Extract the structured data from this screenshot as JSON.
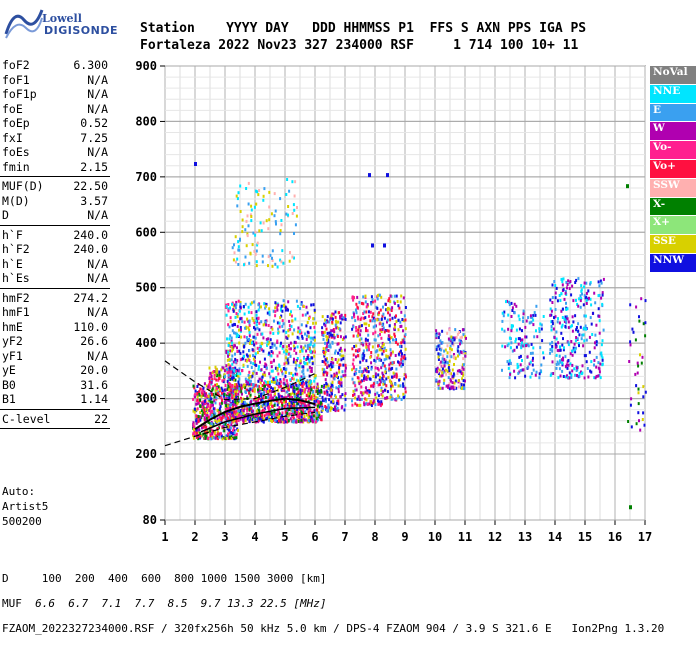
{
  "logo": {
    "line1": "Lowell",
    "line2": "DIGISONDE"
  },
  "header": {
    "line1": "Station    YYYY DAY   DDD HHMMSS P1  FFS S AXN PPS IGA PS",
    "line2": "Fortaleza 2022 Nov23 327 234000 RSF     1 714 100 10+ 11"
  },
  "params": {
    "group1": [
      {
        "k": "foF2",
        "v": "6.300"
      },
      {
        "k": "foF1",
        "v": "N/A"
      },
      {
        "k": "foF1p",
        "v": "N/A"
      },
      {
        "k": "foE",
        "v": "N/A"
      },
      {
        "k": "foEp",
        "v": "0.52"
      },
      {
        "k": "fxI",
        "v": "7.25"
      },
      {
        "k": "foEs",
        "v": "N/A"
      },
      {
        "k": "fmin",
        "v": "2.15"
      }
    ],
    "group2": [
      {
        "k": "MUF(D)",
        "v": "22.50"
      },
      {
        "k": "M(D)",
        "v": "3.57"
      },
      {
        "k": "D",
        "v": "N/A"
      }
    ],
    "group3": [
      {
        "k": "h`F",
        "v": "240.0"
      },
      {
        "k": "h`F2",
        "v": "240.0"
      },
      {
        "k": "h`E",
        "v": "N/A"
      },
      {
        "k": "h`Es",
        "v": "N/A"
      }
    ],
    "group4": [
      {
        "k": "hmF2",
        "v": "274.2"
      },
      {
        "k": "hmF1",
        "v": "N/A"
      },
      {
        "k": "hmE",
        "v": "110.0"
      },
      {
        "k": "yF2",
        "v": "26.6"
      },
      {
        "k": "yF1",
        "v": "N/A"
      },
      {
        "k": "yE",
        "v": "20.0"
      },
      {
        "k": "B0",
        "v": "31.6"
      },
      {
        "k": "B1",
        "v": "1.14"
      }
    ],
    "group5": [
      {
        "k": "C-level",
        "v": "22"
      }
    ]
  },
  "auto": {
    "line1": "Auto:",
    "line2": "Artist5",
    "line3": "500200"
  },
  "legend": [
    {
      "label": "NoVal",
      "color": "#808080"
    },
    {
      "label": "NNE",
      "color": "#00e5ff"
    },
    {
      "label": "E",
      "color": "#3aa0f0"
    },
    {
      "label": "W",
      "color": "#b000b0"
    },
    {
      "label": "Vo-",
      "color": "#ff1f8f"
    },
    {
      "label": "Vo+",
      "color": "#ff1040"
    },
    {
      "label": "SSW",
      "color": "#ffb0b0"
    },
    {
      "label": "X-",
      "color": "#008000"
    },
    {
      "label": "X+",
      "color": "#8de67a"
    },
    {
      "label": "SSE",
      "color": "#d8d000"
    },
    {
      "label": "NNW",
      "color": "#1010e0"
    }
  ],
  "chart_data": {
    "type": "scatter",
    "x_ticks": [
      "1",
      "2",
      "3",
      "4",
      "5",
      "6",
      "7",
      "8",
      "9",
      "10",
      "11",
      "12",
      "13",
      "14",
      "15",
      "16",
      "17"
    ],
    "y_ticks": [
      "80",
      "200",
      "300",
      "400",
      "500",
      "600",
      "700",
      "800",
      "900"
    ],
    "xlim": [
      1,
      17
    ],
    "ylim": [
      80,
      900
    ],
    "grid": true,
    "profile_curve": [
      [
        2.0,
        245
      ],
      [
        2.5,
        262
      ],
      [
        3.0,
        276
      ],
      [
        3.5,
        285
      ],
      [
        4.0,
        291
      ],
      [
        4.5,
        296
      ],
      [
        5.0,
        300
      ],
      [
        5.5,
        297
      ],
      [
        6.0,
        290
      ]
    ],
    "trace_curve": [
      [
        2.2,
        240
      ],
      [
        3.0,
        258
      ],
      [
        4.0,
        272
      ],
      [
        5.0,
        282
      ],
      [
        6.0,
        284
      ]
    ],
    "dashed_upper": [
      [
        1.0,
        368
      ],
      [
        2.0,
        330
      ],
      [
        3.0,
        298
      ],
      [
        4.0,
        300
      ],
      [
        5.0,
        320
      ],
      [
        6.0,
        345
      ]
    ],
    "dashed_lower": [
      [
        1.0,
        215
      ],
      [
        2.0,
        232
      ],
      [
        3.0,
        248
      ],
      [
        4.0,
        258
      ],
      [
        5.0,
        268
      ],
      [
        6.0,
        275
      ]
    ],
    "echo_clusters": [
      {
        "x": [
          1.9,
          2.4
        ],
        "y": [
          230,
          330
        ],
        "n": 180,
        "colors": [
          "#ff1040",
          "#ff1f8f",
          "#b000b0",
          "#008000",
          "#1010e0",
          "#d8d000"
        ]
      },
      {
        "x": [
          2.4,
          3.4
        ],
        "y": [
          230,
          360
        ],
        "n": 420,
        "colors": [
          "#ff1040",
          "#ff1f8f",
          "#b000b0",
          "#008000",
          "#1010e0",
          "#d8d000",
          "#3aa0f0"
        ]
      },
      {
        "x": [
          3.0,
          6.2
        ],
        "y": [
          260,
          330
        ],
        "n": 900,
        "colors": [
          "#ff1040",
          "#ff1f8f",
          "#b000b0",
          "#3aa0f0",
          "#d8d000",
          "#008000",
          "#1010e0"
        ]
      },
      {
        "x": [
          3.0,
          6.0
        ],
        "y": [
          330,
          480
        ],
        "n": 620,
        "colors": [
          "#3aa0f0",
          "#00e5ff",
          "#b000b0",
          "#ff1f8f",
          "#1010e0",
          "#d8d000"
        ]
      },
      {
        "x": [
          3.2,
          5.4
        ],
        "y": [
          540,
          700
        ],
        "n": 120,
        "colors": [
          "#d8d000",
          "#3aa0f0",
          "#00e5ff",
          "#ffb0b0"
        ]
      },
      {
        "x": [
          6.2,
          7.0
        ],
        "y": [
          280,
          460
        ],
        "n": 260,
        "colors": [
          "#ff1040",
          "#b000b0",
          "#1010e0",
          "#d8d000",
          "#3aa0f0"
        ]
      },
      {
        "x": [
          7.2,
          8.2
        ],
        "y": [
          290,
          490
        ],
        "n": 300,
        "colors": [
          "#b000b0",
          "#ff1f8f",
          "#1010e0",
          "#d8d000",
          "#3aa0f0",
          "#ff1040"
        ]
      },
      {
        "x": [
          8.2,
          9.0
        ],
        "y": [
          300,
          490
        ],
        "n": 220,
        "colors": [
          "#1010e0",
          "#b000b0",
          "#d8d000",
          "#3aa0f0",
          "#ff1040"
        ]
      },
      {
        "x": [
          10.0,
          11.0
        ],
        "y": [
          320,
          430
        ],
        "n": 200,
        "colors": [
          "#1010e0",
          "#d8d000",
          "#ffb0b0",
          "#3aa0f0",
          "#b000b0"
        ]
      },
      {
        "x": [
          12.2,
          13.6
        ],
        "y": [
          340,
          480
        ],
        "n": 140,
        "colors": [
          "#00e5ff",
          "#3aa0f0",
          "#1010e0",
          "#b000b0"
        ]
      },
      {
        "x": [
          13.8,
          15.6
        ],
        "y": [
          340,
          520
        ],
        "n": 300,
        "colors": [
          "#1010e0",
          "#3aa0f0",
          "#00e5ff",
          "#b000b0"
        ]
      },
      {
        "x": [
          16.4,
          17.0
        ],
        "y": [
          240,
          500
        ],
        "n": 40,
        "colors": [
          "#b000b0",
          "#1010e0",
          "#d8d000",
          "#008000"
        ]
      }
    ],
    "isolated_points": [
      {
        "x": 2.0,
        "y": 725,
        "color": "#1010e0"
      },
      {
        "x": 7.8,
        "y": 705,
        "color": "#1010e0"
      },
      {
        "x": 8.4,
        "y": 705,
        "color": "#1010e0"
      },
      {
        "x": 7.9,
        "y": 578,
        "color": "#1010e0"
      },
      {
        "x": 8.3,
        "y": 578,
        "color": "#1010e0"
      },
      {
        "x": 16.5,
        "y": 105,
        "color": "#008000"
      },
      {
        "x": 16.4,
        "y": 685,
        "color": "#008000"
      }
    ]
  },
  "footer": {
    "d_row": "D     100  200  400  600  800 1000 1500 3000 [km]",
    "muf_label": "MUF",
    "muf_values": "  6.6  6.7  7.1  7.7  8.5  9.7 13.3 22.5 [MHz]",
    "info": "FZAOM_2022327234000.RSF / 320fx256h 50 kHz 5.0 km / DPS-4 FZAOM 904 / 3.9 S 321.6 E   Ion2Png 1.3.20"
  }
}
